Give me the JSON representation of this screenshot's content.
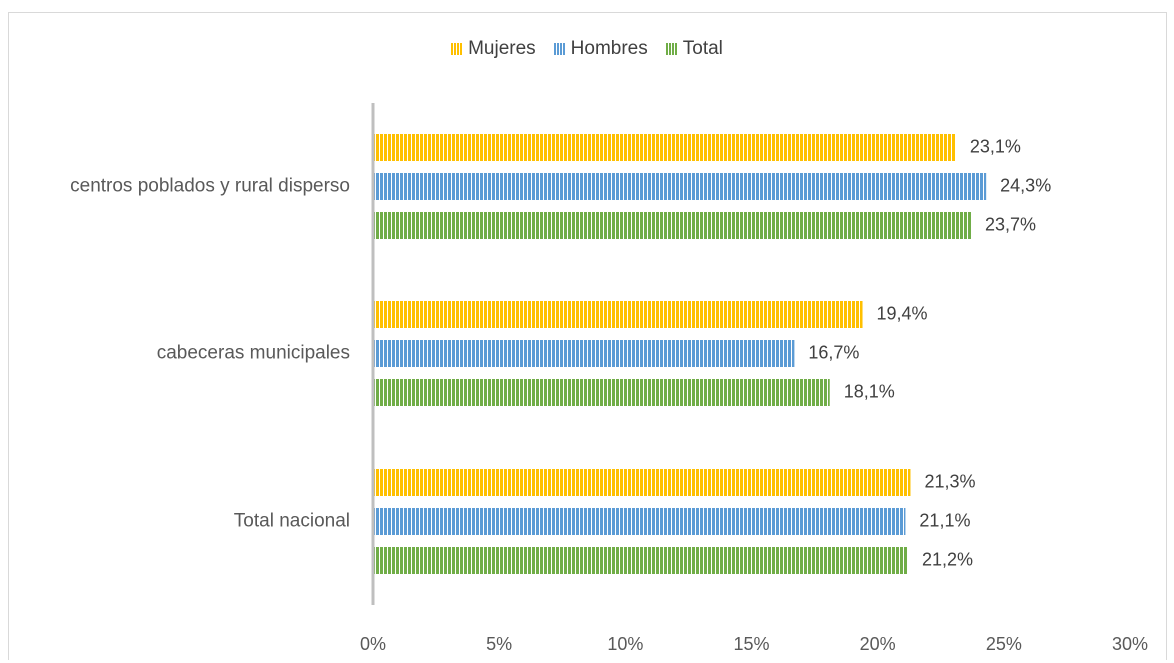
{
  "chart_data": {
    "type": "bar",
    "orientation": "horizontal",
    "categories": [
      "centros poblados y rural disperso",
      "cabeceras municipales",
      "Total nacional"
    ],
    "series": [
      {
        "name": "Mujeres",
        "values": [
          23.1,
          19.4,
          21.3
        ],
        "labels": [
          "23,1%",
          "19,4%",
          "21,3%"
        ],
        "color": "#FFC000"
      },
      {
        "name": "Hombres",
        "values": [
          24.3,
          16.7,
          21.1
        ],
        "labels": [
          "24,3%",
          "16,7%",
          "21,1%"
        ],
        "color": "#5B9BD5"
      },
      {
        "name": "Total",
        "values": [
          23.7,
          18.1,
          21.2
        ],
        "labels": [
          "23,7%",
          "18,1%",
          "21,2%"
        ],
        "color": "#70AD47"
      }
    ],
    "x_ticks": [
      "0%",
      "5%",
      "10%",
      "15%",
      "20%",
      "25%",
      "30%"
    ],
    "xlim": [
      0,
      30
    ],
    "legend_position": "top",
    "grid": false,
    "bar_fill": "vertical-stripes"
  }
}
